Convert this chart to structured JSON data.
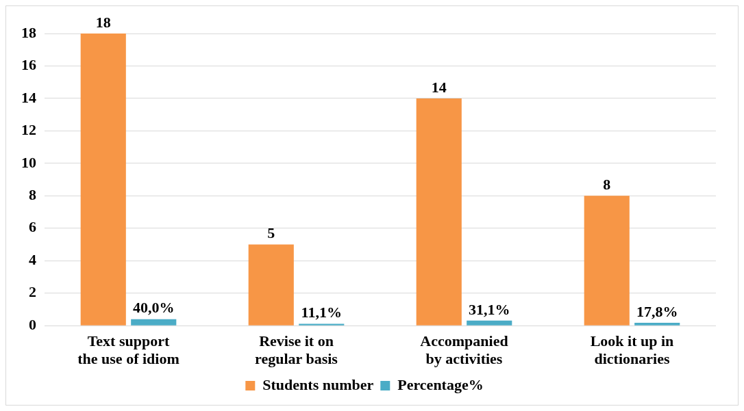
{
  "chart_data": {
    "type": "bar",
    "categories": [
      "Text support the use of idiom",
      "Revise it on regular basis",
      "Accompanied by activities",
      "Look it up in dictionaries"
    ],
    "series": [
      {
        "name": "Students number",
        "color": "#f79646",
        "values": [
          18,
          5,
          14,
          8
        ],
        "value_labels": [
          "18",
          "5",
          "14",
          "8"
        ]
      },
      {
        "name": "Percentage%",
        "color": "#4bacc6",
        "values": [
          0.4,
          0.111,
          0.311,
          0.178
        ],
        "value_labels": [
          "40,0%",
          "11,1%",
          "31,1%",
          "17,8%"
        ]
      }
    ],
    "ylim": [
      0,
      18
    ],
    "yticks": [
      0,
      2,
      4,
      6,
      8,
      10,
      12,
      14,
      16,
      18
    ],
    "grid": "y",
    "legend": "bottom"
  }
}
